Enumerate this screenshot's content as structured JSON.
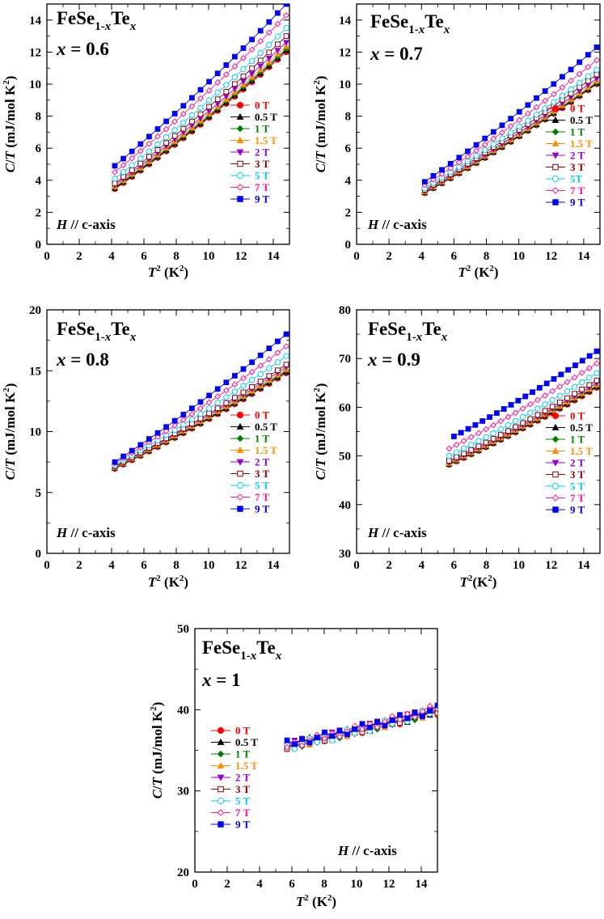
{
  "legend": [
    {
      "label": "0 T",
      "color": "#ff0000",
      "marker": "circle-filled"
    },
    {
      "label": "0.5 T",
      "color": "#000000",
      "marker": "tri-up-filled"
    },
    {
      "label": "1 T",
      "color": "#008000",
      "marker": "diamond-filled"
    },
    {
      "label": "1.5 T",
      "color": "#ff8c00",
      "marker": "tri-up-filled"
    },
    {
      "label": "2 T",
      "color": "#9400d3",
      "marker": "tri-down-filled"
    },
    {
      "label": "3 T",
      "color": "#8b0000",
      "marker": "square-open"
    },
    {
      "label": "5 T",
      "color": "#00ccff",
      "marker": "circle-open"
    },
    {
      "label": "7 T",
      "color": "#ff1493",
      "marker": "diamond-open"
    },
    {
      "label": "9 T",
      "color": "#0000ff",
      "marker": "square-filled"
    }
  ],
  "chart_data": [
    {
      "type": "line",
      "title": "FeSe1-xTex",
      "title_parts": [
        "FeSe",
        "1-",
        "x",
        "Te",
        "x"
      ],
      "x_param": "x = 0.6",
      "annotation": "H // c-axis",
      "xlabel": "T2 (K2)",
      "ylabel": "C/T (mJ/mol K2)",
      "xlim": [
        0,
        15
      ],
      "ylim": [
        0,
        15
      ],
      "xticks": [
        0,
        2,
        4,
        6,
        8,
        10,
        12,
        14
      ],
      "yticks": [
        0,
        2,
        4,
        6,
        8,
        10,
        12,
        14
      ],
      "legend_labels": [
        "0 T",
        "0.5 T",
        "1 T",
        "1.5 T",
        "2 T",
        "3 T",
        "5 T",
        "7 T",
        "9 T"
      ],
      "series": [
        {
          "name": "0 T",
          "x_start": 4.2,
          "x_end": 14.8,
          "y_start": 3.45,
          "y_end": 12.0
        },
        {
          "name": "0.5 T",
          "x_start": 4.2,
          "x_end": 14.8,
          "y_start": 3.5,
          "y_end": 12.1
        },
        {
          "name": "1 T",
          "x_start": 4.2,
          "x_end": 14.8,
          "y_start": 3.55,
          "y_end": 12.2
        },
        {
          "name": "1.5 T",
          "x_start": 4.2,
          "x_end": 14.8,
          "y_start": 3.6,
          "y_end": 12.35
        },
        {
          "name": "2 T",
          "x_start": 4.2,
          "x_end": 14.8,
          "y_start": 3.7,
          "y_end": 12.6
        },
        {
          "name": "3 T",
          "x_start": 4.2,
          "x_end": 14.8,
          "y_start": 3.8,
          "y_end": 13.0
        },
        {
          "name": "5 T",
          "x_start": 4.2,
          "x_end": 14.8,
          "y_start": 4.1,
          "y_end": 13.5
        },
        {
          "name": "7 T",
          "x_start": 4.2,
          "x_end": 14.8,
          "y_start": 4.5,
          "y_end": 14.3
        },
        {
          "name": "9 T",
          "x_start": 4.2,
          "x_end": 14.8,
          "y_start": 4.9,
          "y_end": 15.0
        }
      ]
    },
    {
      "type": "line",
      "title": "FeSe1-xTex",
      "title_parts": [
        "FeSe",
        "1-",
        "x",
        "Te",
        "x"
      ],
      "x_param": "x = 0.7",
      "annotation": "H // c-axis",
      "xlabel": "T2 (K2)",
      "ylabel": "C/T (mJ/mol K2)",
      "xlim": [
        0,
        15
      ],
      "ylim": [
        0,
        15
      ],
      "xticks": [
        0,
        2,
        4,
        6,
        8,
        10,
        12,
        14
      ],
      "yticks": [
        0,
        2,
        4,
        6,
        8,
        10,
        12,
        14
      ],
      "legend_labels": [
        "0 T",
        "0.5 T",
        "1 T",
        "1.5 T",
        "2 T",
        "3 T",
        "5T",
        "7 T",
        "9 T"
      ],
      "series": [
        {
          "name": "0 T",
          "x_start": 4.2,
          "x_end": 14.8,
          "y_start": 3.2,
          "y_end": 10.0
        },
        {
          "name": "0.5 T",
          "x_start": 4.2,
          "x_end": 14.8,
          "y_start": 3.22,
          "y_end": 10.05
        },
        {
          "name": "1 T",
          "x_start": 4.2,
          "x_end": 14.8,
          "y_start": 3.25,
          "y_end": 10.1
        },
        {
          "name": "1.5 T",
          "x_start": 4.2,
          "x_end": 14.8,
          "y_start": 3.28,
          "y_end": 10.2
        },
        {
          "name": "2 T",
          "x_start": 4.2,
          "x_end": 14.8,
          "y_start": 3.32,
          "y_end": 10.35
        },
        {
          "name": "3 T",
          "x_start": 4.2,
          "x_end": 14.8,
          "y_start": 3.4,
          "y_end": 10.6
        },
        {
          "name": "5 T",
          "x_start": 4.2,
          "x_end": 14.8,
          "y_start": 3.5,
          "y_end": 10.9
        },
        {
          "name": "7 T",
          "x_start": 4.2,
          "x_end": 14.8,
          "y_start": 3.7,
          "y_end": 11.5
        },
        {
          "name": "9 T",
          "x_start": 4.2,
          "x_end": 14.8,
          "y_start": 3.9,
          "y_end": 12.3
        }
      ]
    },
    {
      "type": "line",
      "title": "FeSe1-xTex",
      "title_parts": [
        "FeSe",
        "1-",
        "x",
        "Te",
        "x"
      ],
      "x_param": "x = 0.8",
      "annotation": "H // c-axis",
      "xlabel": "T2 (K2)",
      "ylabel": "C/T (mJ/mol K2)",
      "xlim": [
        0,
        15
      ],
      "ylim": [
        0,
        20
      ],
      "xticks": [
        0,
        2,
        4,
        6,
        8,
        10,
        12,
        14
      ],
      "yticks": [
        0,
        5,
        10,
        15,
        20
      ],
      "legend_labels": [
        "0 T",
        "0.5 T",
        "1 T",
        "1.5 T",
        "2 T",
        "3 T",
        "5 T",
        "7 T",
        "9 T"
      ],
      "series": [
        {
          "name": "0 T",
          "x_start": 4.2,
          "x_end": 14.8,
          "y_start": 6.95,
          "y_end": 14.8
        },
        {
          "name": "0.5 T",
          "x_start": 4.2,
          "x_end": 14.8,
          "y_start": 7.0,
          "y_end": 14.9
        },
        {
          "name": "1 T",
          "x_start": 4.2,
          "x_end": 14.8,
          "y_start": 7.02,
          "y_end": 15.0
        },
        {
          "name": "1.5 T",
          "x_start": 4.2,
          "x_end": 14.8,
          "y_start": 7.05,
          "y_end": 15.1
        },
        {
          "name": "2 T",
          "x_start": 4.2,
          "x_end": 14.8,
          "y_start": 7.1,
          "y_end": 15.3
        },
        {
          "name": "3 T",
          "x_start": 4.2,
          "x_end": 14.8,
          "y_start": 7.15,
          "y_end": 15.5
        },
        {
          "name": "5 T",
          "x_start": 4.2,
          "x_end": 14.8,
          "y_start": 7.25,
          "y_end": 16.2
        },
        {
          "name": "7 T",
          "x_start": 4.2,
          "x_end": 14.8,
          "y_start": 7.4,
          "y_end": 17.0
        },
        {
          "name": "9 T",
          "x_start": 4.2,
          "x_end": 14.8,
          "y_start": 7.5,
          "y_end": 18.0
        }
      ]
    },
    {
      "type": "line",
      "title": "FeSe1-xTex",
      "title_parts": [
        "FeSe",
        "1-",
        "x",
        "Te",
        "x"
      ],
      "x_param": "x = 0.9",
      "annotation": "H // c-axis",
      "xlabel": "T2(K2)",
      "ylabel": "C/T (mJ/mol K2)",
      "xlim": [
        0,
        15
      ],
      "ylim": [
        30,
        80
      ],
      "xticks": [
        0,
        2,
        4,
        6,
        8,
        10,
        12,
        14
      ],
      "yticks": [
        30,
        40,
        50,
        60,
        70,
        80
      ],
      "legend_labels": [
        "0 T",
        "0.5 T",
        "1 T",
        "1.5 T",
        "2 T",
        "3 T",
        "5 T",
        "7 T",
        "9 T"
      ],
      "series": [
        {
          "name": "0 T",
          "x_start": 5.7,
          "x_end": 14.8,
          "y_start": 48.2,
          "y_end": 64.0
        },
        {
          "name": "0.5 T",
          "x_start": 5.7,
          "x_end": 14.8,
          "y_start": 48.3,
          "y_end": 64.2
        },
        {
          "name": "1 T",
          "x_start": 5.7,
          "x_end": 14.8,
          "y_start": 48.4,
          "y_end": 64.4
        },
        {
          "name": "1.5 T",
          "x_start": 5.7,
          "x_end": 14.8,
          "y_start": 48.5,
          "y_end": 64.6
        },
        {
          "name": "2 T",
          "x_start": 5.7,
          "x_end": 14.8,
          "y_start": 48.7,
          "y_end": 65.0
        },
        {
          "name": "3 T",
          "x_start": 5.7,
          "x_end": 14.8,
          "y_start": 49.0,
          "y_end": 65.5
        },
        {
          "name": "5 T",
          "x_start": 5.7,
          "x_end": 14.8,
          "y_start": 50.0,
          "y_end": 67.0
        },
        {
          "name": "7 T",
          "x_start": 5.7,
          "x_end": 14.8,
          "y_start": 51.5,
          "y_end": 69.0
        },
        {
          "name": "9 T",
          "x_start": 6.0,
          "x_end": 14.8,
          "y_start": 54.0,
          "y_end": 71.5
        }
      ]
    },
    {
      "type": "line",
      "title": "FeSe1-xTex",
      "title_parts": [
        "FeSe",
        "1-",
        "x",
        "Te",
        "x"
      ],
      "x_param": "x = 1",
      "annotation": "H // c-axis",
      "xlabel": "T2 (K2)",
      "ylabel": "C/T (mJ/mol K2)",
      "xlim": [
        0,
        15
      ],
      "ylim": [
        20,
        50
      ],
      "xticks": [
        0,
        2,
        4,
        6,
        8,
        10,
        12,
        14
      ],
      "yticks": [
        20,
        30,
        40,
        50
      ],
      "legend_labels": [
        "0 T",
        "0.5 T",
        "1 T",
        "1.5 T",
        "2 T",
        "3 T",
        "5 T",
        "7 T",
        "9 T"
      ],
      "series": [
        {
          "name": "0 T",
          "x_start": 5.7,
          "x_end": 15.0,
          "y_start": 35.6,
          "y_end": 39.8
        },
        {
          "name": "0.5 T",
          "x_start": 5.7,
          "x_end": 15.0,
          "y_start": 35.6,
          "y_end": 39.8
        },
        {
          "name": "1 T",
          "x_start": 5.7,
          "x_end": 15.0,
          "y_start": 35.5,
          "y_end": 39.9
        },
        {
          "name": "1.5 T",
          "x_start": 5.7,
          "x_end": 15.0,
          "y_start": 35.5,
          "y_end": 39.9
        },
        {
          "name": "2 T",
          "x_start": 5.7,
          "x_end": 15.0,
          "y_start": 35.6,
          "y_end": 40.0
        },
        {
          "name": "3 T",
          "x_start": 5.7,
          "x_end": 15.0,
          "y_start": 35.6,
          "y_end": 40.0
        },
        {
          "name": "5 T",
          "x_start": 5.7,
          "x_end": 15.0,
          "y_start": 35.4,
          "y_end": 40.0
        },
        {
          "name": "7 T",
          "x_start": 5.7,
          "x_end": 15.0,
          "y_start": 35.6,
          "y_end": 40.3
        },
        {
          "name": "9 T",
          "x_start": 5.7,
          "x_end": 15.0,
          "y_start": 35.8,
          "y_end": 40.1
        }
      ]
    }
  ]
}
